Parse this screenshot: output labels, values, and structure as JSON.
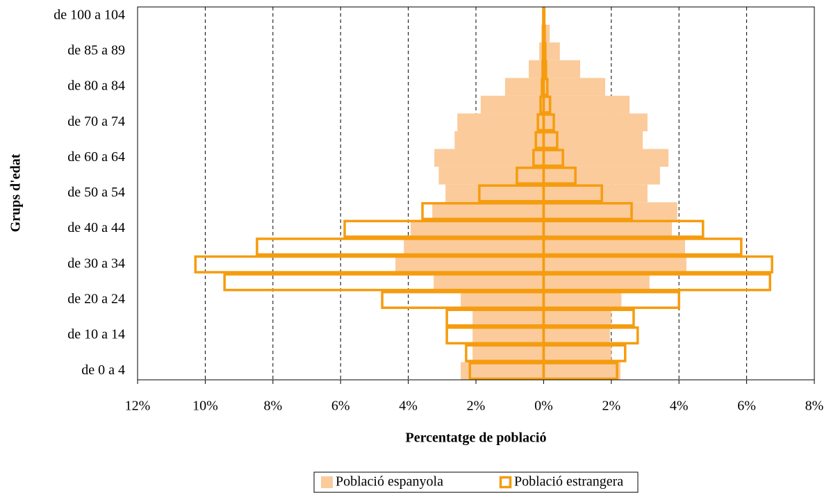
{
  "chart_data": {
    "type": "pyramid",
    "xlabel": "Percentatge de població",
    "ylabel": "Grups d'edat",
    "categories": [
      "de 0 a 4",
      null,
      "de 10 a 14",
      null,
      "de 20 a 24",
      null,
      "de 30 a 34",
      null,
      "de 40 a 44",
      null,
      "de 50 a 54",
      null,
      "de 60 a 64",
      null,
      "de 70 a 74",
      null,
      "de 80 a 84",
      null,
      "de 85 a 89",
      null,
      "de 100 a 104"
    ],
    "xlim": [
      -12,
      8
    ],
    "xticks": [
      {
        "value": -12,
        "label": "12%"
      },
      {
        "value": -10,
        "label": "10%"
      },
      {
        "value": -8,
        "label": "8%"
      },
      {
        "value": -6,
        "label": "6%"
      },
      {
        "value": -4,
        "label": "4%"
      },
      {
        "value": -2,
        "label": "2%"
      },
      {
        "value": 0,
        "label": "0%"
      },
      {
        "value": 2,
        "label": "2%"
      },
      {
        "value": 4,
        "label": "4%"
      },
      {
        "value": 6,
        "label": "6%"
      },
      {
        "value": 8,
        "label": "8%"
      }
    ],
    "grid": true,
    "series": [
      {
        "name": "Població espanyola",
        "color": "#fbcb9b",
        "style": "fill",
        "left": [
          -2.45,
          -2.1,
          -2.1,
          -2.1,
          -2.45,
          -3.25,
          -4.38,
          -4.13,
          -3.93,
          -3.29,
          -2.9,
          -3.1,
          -3.23,
          -2.63,
          -2.55,
          -1.86,
          -1.14,
          -0.44,
          -0.13,
          -0.07,
          -0.02
        ],
        "right": [
          2.27,
          2.0,
          1.96,
          2.0,
          2.3,
          3.13,
          4.22,
          4.18,
          3.79,
          3.95,
          3.07,
          3.44,
          3.69,
          2.93,
          3.07,
          2.54,
          1.82,
          1.08,
          0.48,
          0.18,
          0.02
        ]
      },
      {
        "name": "Població estrangera",
        "color": "#f59c0f",
        "style": "outline",
        "left": [
          -2.18,
          -2.29,
          -2.86,
          -2.86,
          -4.77,
          -9.43,
          -10.29,
          -8.47,
          -5.88,
          -3.58,
          -1.9,
          -0.79,
          -0.3,
          -0.23,
          -0.17,
          -0.09,
          -0.05,
          -0.03,
          -0.02,
          -0.01,
          -0.01
        ],
        "right": [
          2.17,
          2.41,
          2.78,
          2.66,
          4.0,
          6.69,
          6.75,
          5.84,
          4.71,
          2.6,
          1.72,
          0.94,
          0.57,
          0.4,
          0.3,
          0.19,
          0.11,
          0.07,
          0.05,
          0.03,
          0.02
        ]
      }
    ]
  }
}
